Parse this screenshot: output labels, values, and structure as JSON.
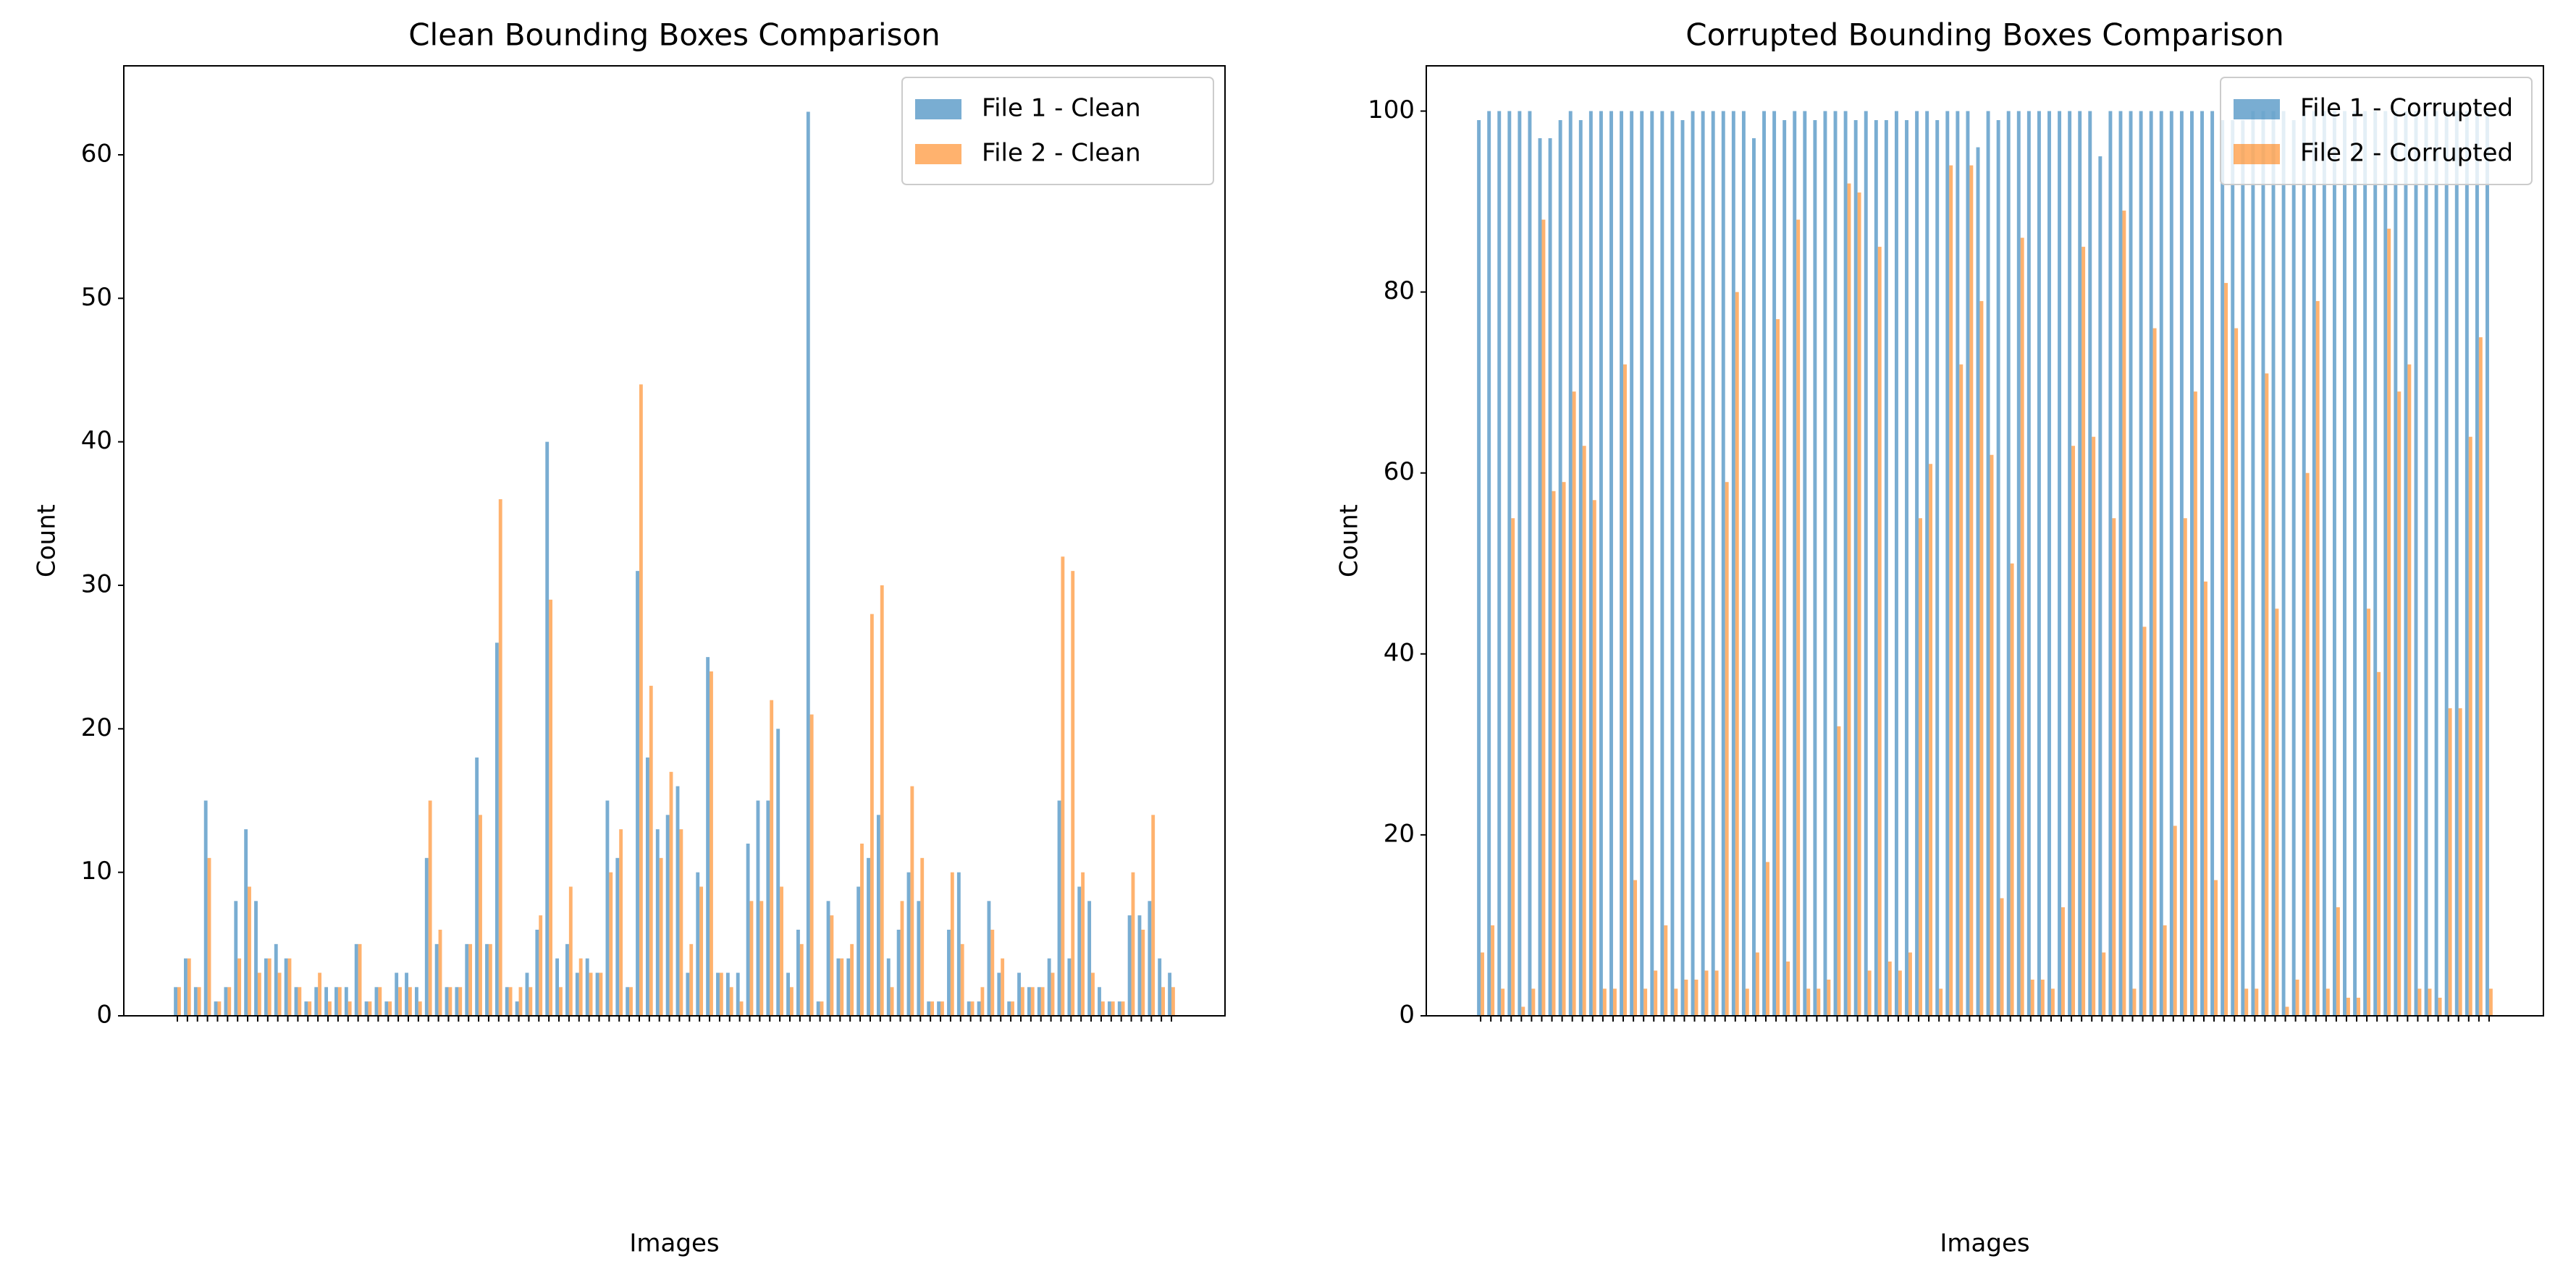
{
  "chart_data": [
    {
      "type": "bar",
      "title": "Clean Bounding Boxes Comparison",
      "xlabel": "Images",
      "ylabel": "Count",
      "categories": [
        null,
        null,
        null,
        null,
        null,
        null,
        null,
        null,
        null,
        null,
        null,
        null,
        null,
        null,
        null,
        null,
        null,
        null,
        null,
        null,
        null,
        null,
        null,
        null,
        null,
        null,
        null,
        null,
        null,
        null,
        null,
        null,
        null,
        null,
        null,
        null,
        null,
        null,
        null,
        null,
        null,
        null,
        null,
        null,
        null,
        null,
        null,
        null,
        null,
        null,
        null,
        null,
        null,
        null,
        null,
        null,
        null,
        null,
        null,
        null,
        null,
        null,
        null,
        null,
        null,
        null,
        null,
        null,
        null,
        null,
        null,
        null,
        null,
        null,
        null,
        null,
        null,
        null,
        null,
        null,
        null,
        null,
        null,
        null,
        null,
        null,
        null,
        null,
        null,
        null,
        null,
        null,
        null,
        null,
        null,
        null,
        null,
        null,
        null,
        null
      ],
      "series": [
        {
          "name": "File 1 - Clean",
          "color": "#1f77b4",
          "values": [
            2,
            4,
            2,
            15,
            1,
            2,
            8,
            13,
            8,
            4,
            5,
            4,
            2,
            1,
            2,
            2,
            2,
            2,
            5,
            1,
            2,
            1,
            3,
            3,
            2,
            11,
            5,
            2,
            2,
            5,
            18,
            5,
            26,
            2,
            1,
            3,
            6,
            40,
            4,
            5,
            3,
            4,
            3,
            15,
            11,
            2,
            31,
            18,
            13,
            14,
            16,
            3,
            10,
            25,
            3,
            3,
            3,
            12,
            15,
            15,
            20,
            3,
            6,
            63,
            1,
            8,
            4,
            4,
            9,
            11,
            14,
            4,
            6,
            10,
            8,
            1,
            1,
            6,
            10,
            1,
            1,
            8,
            3,
            1,
            3,
            2,
            2,
            4,
            15,
            4,
            9,
            8,
            2,
            1,
            1,
            7,
            7,
            8,
            4,
            3
          ]
        },
        {
          "name": "File 2 - Clean",
          "color": "#ff7f0e",
          "values": [
            2,
            4,
            2,
            11,
            1,
            2,
            4,
            9,
            3,
            4,
            3,
            4,
            2,
            1,
            3,
            1,
            2,
            1,
            5,
            1,
            2,
            1,
            2,
            2,
            1,
            15,
            6,
            2,
            2,
            5,
            14,
            5,
            36,
            2,
            2,
            2,
            7,
            29,
            2,
            9,
            4,
            3,
            3,
            10,
            13,
            2,
            44,
            23,
            11,
            17,
            13,
            5,
            9,
            24,
            3,
            2,
            1,
            8,
            8,
            22,
            9,
            2,
            5,
            21,
            1,
            7,
            4,
            5,
            12,
            28,
            30,
            2,
            8,
            16,
            11,
            1,
            1,
            10,
            5,
            1,
            2,
            6,
            4,
            1,
            2,
            2,
            2,
            3,
            32,
            31,
            10,
            3,
            1,
            1,
            1,
            10,
            6,
            14,
            2,
            2
          ]
        }
      ],
      "ylim": [
        0,
        66.2
      ],
      "yticks": [
        0,
        10,
        20,
        30,
        40,
        50,
        60
      ],
      "legend": "upper right"
    },
    {
      "type": "bar",
      "title": "Corrupted Bounding Boxes Comparison",
      "xlabel": "Images",
      "ylabel": "Count",
      "categories": [
        null,
        null,
        null,
        null,
        null,
        null,
        null,
        null,
        null,
        null,
        null,
        null,
        null,
        null,
        null,
        null,
        null,
        null,
        null,
        null,
        null,
        null,
        null,
        null,
        null,
        null,
        null,
        null,
        null,
        null,
        null,
        null,
        null,
        null,
        null,
        null,
        null,
        null,
        null,
        null,
        null,
        null,
        null,
        null,
        null,
        null,
        null,
        null,
        null,
        null,
        null,
        null,
        null,
        null,
        null,
        null,
        null,
        null,
        null,
        null,
        null,
        null,
        null,
        null,
        null,
        null,
        null,
        null,
        null,
        null,
        null,
        null,
        null,
        null,
        null,
        null,
        null,
        null,
        null,
        null,
        null,
        null,
        null,
        null,
        null,
        null,
        null,
        null,
        null,
        null,
        null,
        null,
        null,
        null,
        null,
        null,
        null,
        null,
        null,
        null
      ],
      "series": [
        {
          "name": "File 1 - Corrupted",
          "color": "#1f77b4",
          "values": [
            99,
            100,
            100,
            100,
            100,
            100,
            97,
            97,
            99,
            100,
            99,
            100,
            100,
            100,
            100,
            100,
            100,
            100,
            100,
            100,
            99,
            100,
            100,
            100,
            100,
            100,
            100,
            97,
            100,
            100,
            99,
            100,
            100,
            99,
            100,
            100,
            100,
            99,
            100,
            99,
            99,
            100,
            99,
            100,
            100,
            99,
            100,
            100,
            100,
            96,
            100,
            99,
            100,
            100,
            100,
            100,
            100,
            100,
            100,
            100,
            100,
            95,
            100,
            100,
            100,
            100,
            100,
            100,
            100,
            100,
            100,
            100,
            100,
            99,
            99,
            99,
            100,
            100,
            100,
            100,
            99,
            100,
            100,
            100,
            100,
            100,
            100,
            100,
            100,
            100,
            100,
            100,
            100,
            100,
            100,
            100,
            100,
            100,
            100,
            100
          ]
        },
        {
          "name": "File 2 - Corrupted",
          "color": "#ff7f0e",
          "values": [
            7,
            10,
            3,
            55,
            1,
            3,
            88,
            58,
            59,
            69,
            63,
            57,
            3,
            3,
            72,
            15,
            3,
            5,
            10,
            3,
            4,
            4,
            5,
            5,
            59,
            80,
            3,
            7,
            17,
            77,
            6,
            88,
            3,
            3,
            4,
            32,
            92,
            91,
            5,
            85,
            6,
            5,
            7,
            55,
            61,
            3,
            94,
            72,
            94,
            79,
            62,
            13,
            50,
            86,
            4,
            4,
            3,
            12,
            63,
            85,
            64,
            7,
            55,
            89,
            3,
            43,
            76,
            10,
            21,
            55,
            69,
            48,
            15,
            81,
            76,
            3,
            3,
            71,
            45,
            1,
            4,
            60,
            79,
            3,
            12,
            2,
            2,
            45,
            38,
            87,
            69,
            72,
            3,
            3,
            2,
            34,
            34,
            64,
            75,
            3
          ]
        }
      ],
      "ylim": [
        0,
        105
      ],
      "yticks": [
        0,
        20,
        40,
        60,
        80,
        100
      ],
      "legend": "upper right"
    }
  ]
}
